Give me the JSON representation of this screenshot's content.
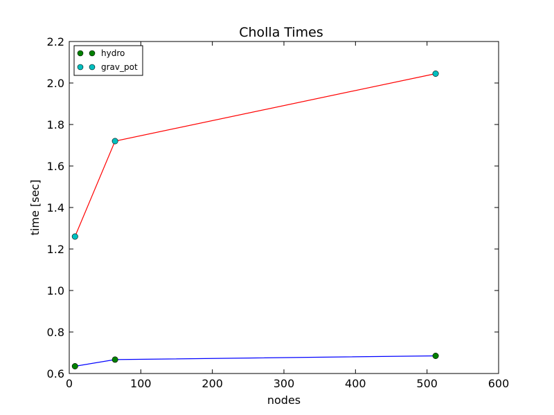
{
  "chart_data": {
    "type": "line",
    "title": "Cholla Times",
    "xlabel": "nodes",
    "ylabel": "time [sec]",
    "xlim": [
      0,
      600
    ],
    "ylim": [
      0.6,
      2.2
    ],
    "xticks": [
      "0",
      "100",
      "200",
      "300",
      "400",
      "500",
      "600"
    ],
    "yticks": [
      "0.6",
      "0.8",
      "1.0",
      "1.2",
      "1.4",
      "1.6",
      "1.8",
      "2.0",
      "2.2"
    ],
    "grid": false,
    "legend_position": "top-left",
    "series": [
      {
        "name": "hydro",
        "x": [
          8,
          64,
          512
        ],
        "y": [
          0.635,
          0.667,
          0.685
        ],
        "line_color": "#0000ff",
        "marker_color": "#008000"
      },
      {
        "name": "grav_pot",
        "x": [
          8,
          64,
          512
        ],
        "y": [
          1.26,
          1.72,
          2.045
        ],
        "line_color": "#ff0000",
        "marker_color": "#00bfbf"
      }
    ]
  }
}
